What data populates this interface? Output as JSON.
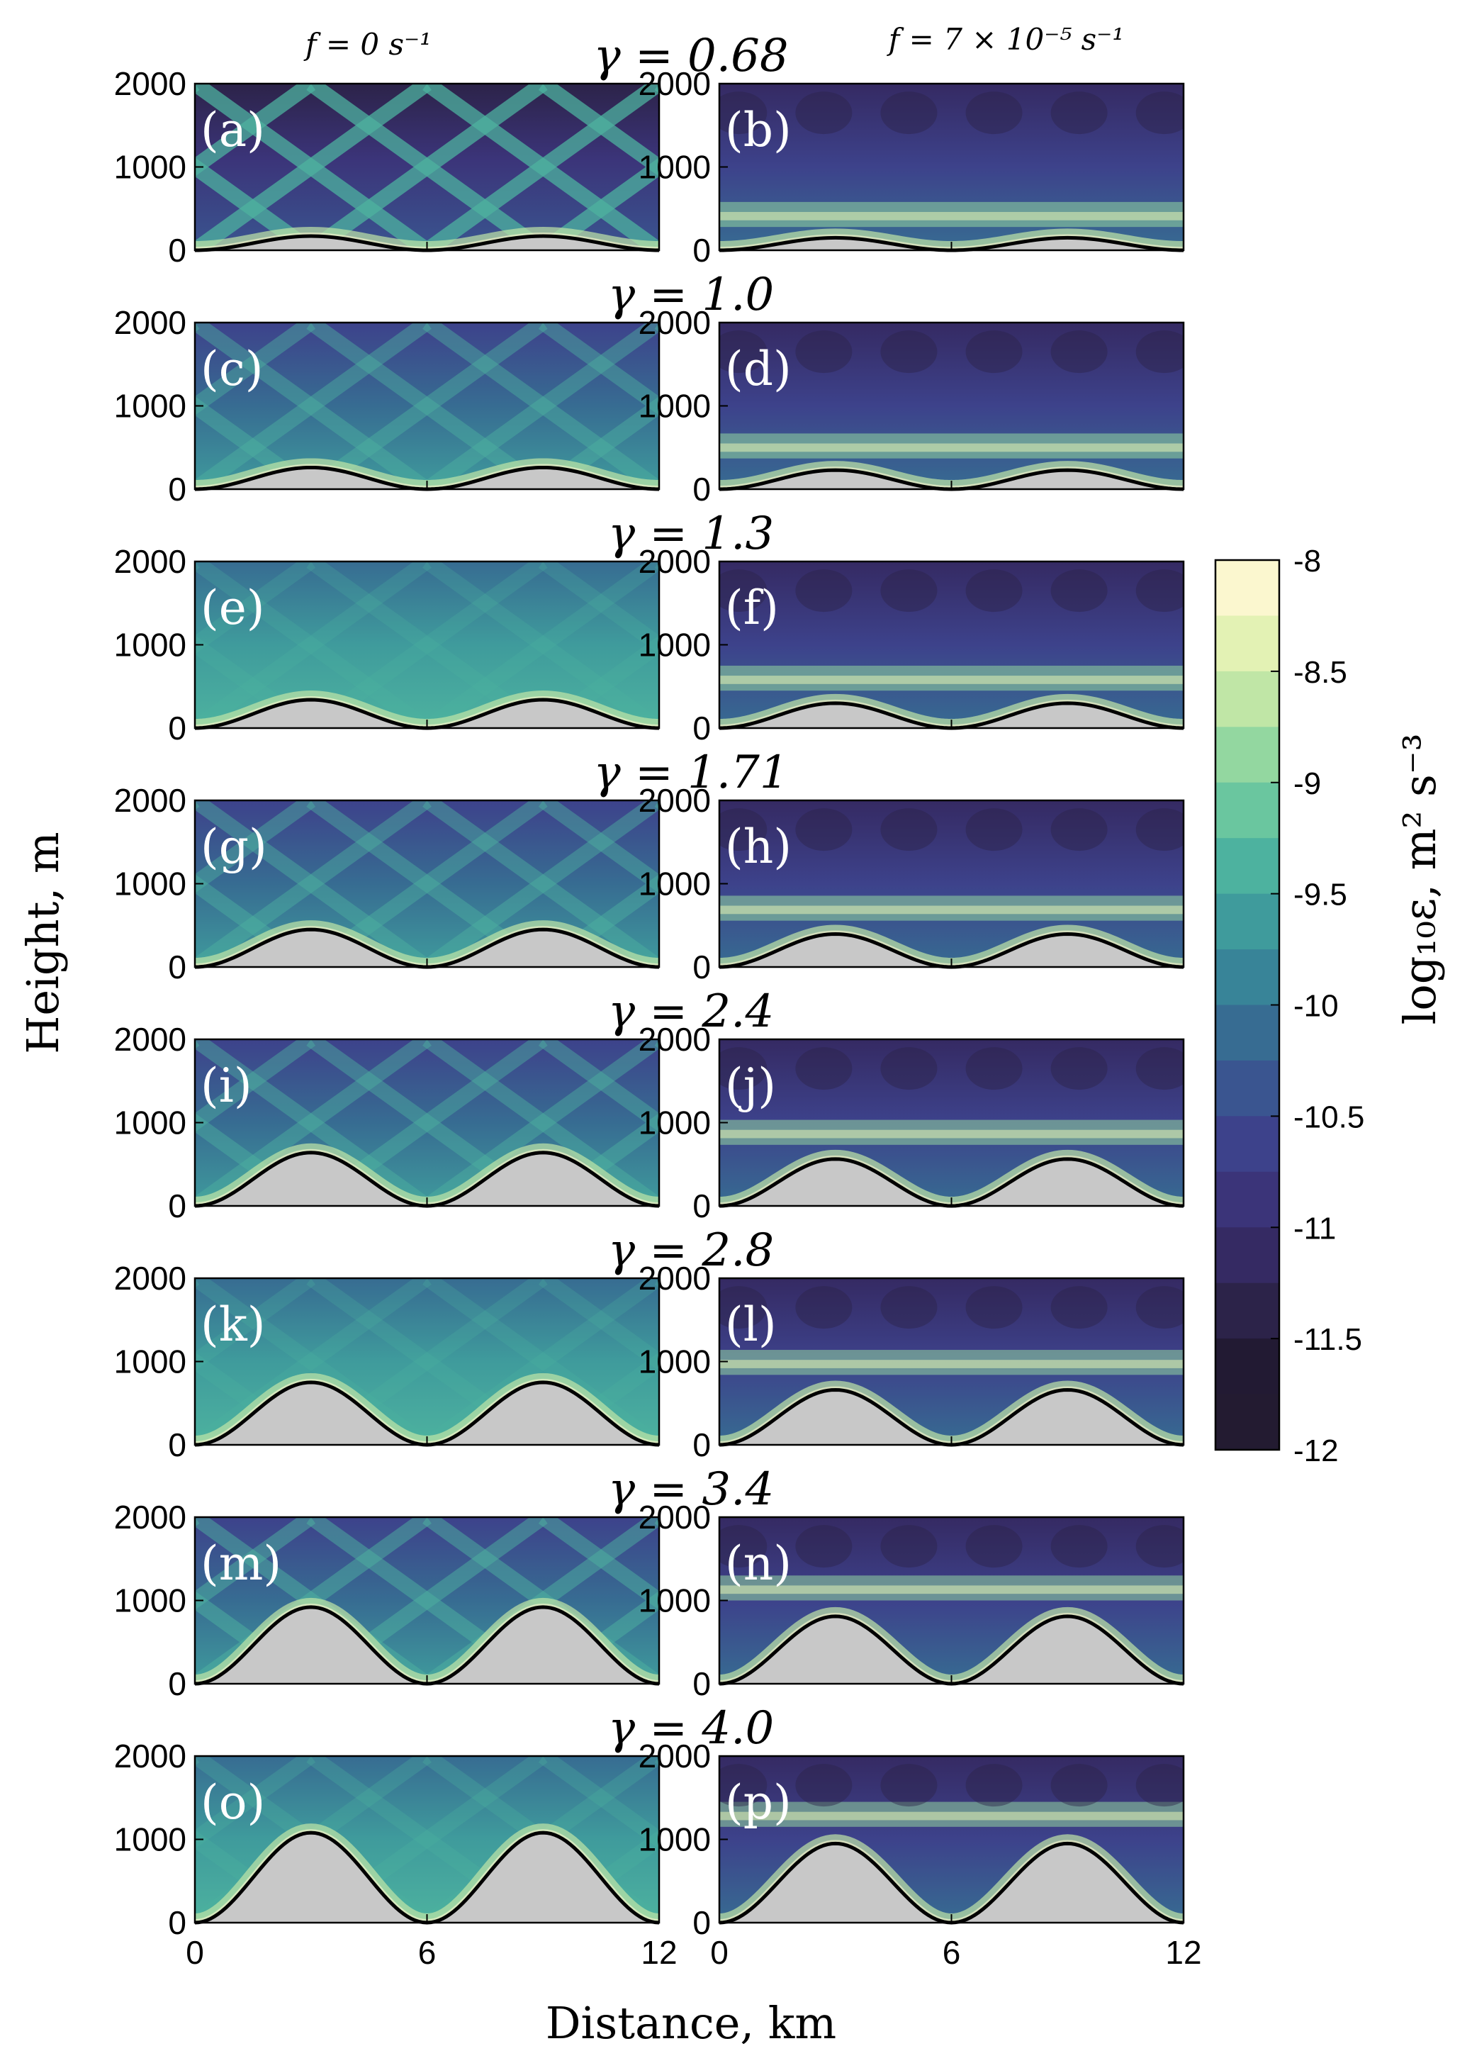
{
  "chart_data": {
    "type": "heatmap",
    "column_titles": [
      "f = 0 s⁻¹",
      "f = 7 × 10⁻⁵ s⁻¹"
    ],
    "xlabel": "Distance, km",
    "ylabel": "Height, m",
    "xlim": [
      0,
      12
    ],
    "ylim": [
      0,
      2000
    ],
    "xticks": [
      "0",
      "6",
      "12"
    ],
    "yticks": [
      "0",
      "1000",
      "2000"
    ],
    "rows": [
      {
        "gamma": "γ = 0.68",
        "hill_height_m": 170,
        "panels": [
          "(a)",
          "(b)"
        ]
      },
      {
        "gamma": "γ = 1.0",
        "hill_height_m": 260,
        "panels": [
          "(c)",
          "(d)"
        ]
      },
      {
        "gamma": "γ = 1.3",
        "hill_height_m": 340,
        "panels": [
          "(e)",
          "(f)"
        ]
      },
      {
        "gamma": "γ = 1.71",
        "hill_height_m": 450,
        "panels": [
          "(g)",
          "(h)"
        ]
      },
      {
        "gamma": "γ = 2.4",
        "hill_height_m": 640,
        "panels": [
          "(i)",
          "(j)"
        ]
      },
      {
        "gamma": "γ = 2.8",
        "hill_height_m": 750,
        "panels": [
          "(k)",
          "(l)"
        ]
      },
      {
        "gamma": "γ = 3.4",
        "hill_height_m": 920,
        "panels": [
          "(m)",
          "(n)"
        ]
      },
      {
        "gamma": "γ = 4.0",
        "hill_height_m": 1080,
        "panels": [
          "(o)",
          "(p)"
        ]
      }
    ],
    "colorbar": {
      "label": "log₁₀ε, m² s⁻³",
      "range": [
        -12,
        -8
      ],
      "ticks": [
        "-8",
        "-8.5",
        "-9",
        "-9.5",
        "-10",
        "-10.5",
        "-11",
        "-11.5",
        "-12"
      ],
      "colors": [
        "#fbf7cf",
        "#e3f2b4",
        "#c0e6a6",
        "#93d7a0",
        "#6ac69f",
        "#4db29f",
        "#3f9b9c",
        "#388498",
        "#376c92",
        "#3a5590",
        "#3d428b",
        "#3b3479",
        "#352a63",
        "#2c2349",
        "#221a33",
        "#231b31"
      ]
    }
  }
}
